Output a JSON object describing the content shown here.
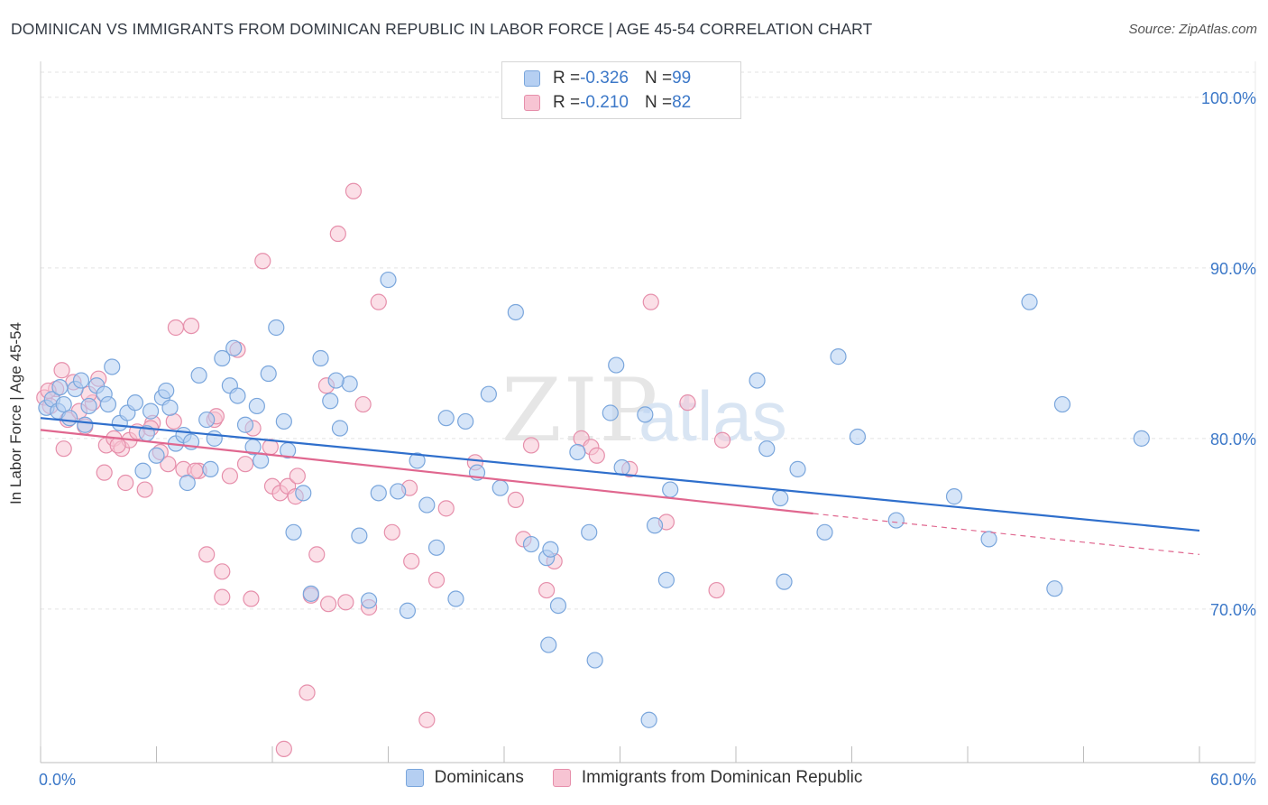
{
  "title": "DOMINICAN VS IMMIGRANTS FROM DOMINICAN REPUBLIC IN LABOR FORCE | AGE 45-54 CORRELATION CHART",
  "source": "Source: ZipAtlas.com",
  "watermark": {
    "zip": "ZIP",
    "atlas": "atlas"
  },
  "legend": {
    "rows": [
      {
        "r_label": "R = ",
        "r_value": "-0.326",
        "n_label": "N = ",
        "n_value": "99"
      },
      {
        "r_label": "R = ",
        "r_value": "-0.210",
        "n_label": "N = ",
        "n_value": "82"
      }
    ]
  },
  "bottom_legend": [
    "Dominicans",
    "Immigrants from Dominican Republic"
  ],
  "colors": {
    "blue_fill": "#b5cff2",
    "blue_stroke": "#7aa6dc",
    "blue_line": "#2f6fcc",
    "pink_fill": "#f7c4d3",
    "pink_stroke": "#e68fab",
    "pink_line": "#e0678f",
    "grid": "#e3e3e3",
    "tick_label": "#3c78c8"
  },
  "chart_data": {
    "type": "scatter",
    "title": "DOMINICAN VS IMMIGRANTS FROM DOMINICAN REPUBLIC IN LABOR FORCE | AGE 45-54 CORRELATION CHART",
    "xlabel": "",
    "ylabel": "In Labor Force | Age 45-54",
    "xlim": [
      0,
      60
    ],
    "ylim": [
      61,
      102
    ],
    "x_tick_labels": [
      "0.0%",
      "60.0%"
    ],
    "y_ticks": [
      70,
      80,
      90,
      100
    ],
    "y_tick_labels": [
      "70.0%",
      "80.0%",
      "90.0%",
      "100.0%"
    ],
    "series": [
      {
        "name": "Dominicans",
        "r": -0.326,
        "n": 99,
        "trend": {
          "x0": 0,
          "y0": 81.2,
          "x1": 60,
          "y1": 74.6
        },
        "points": [
          [
            0.3,
            81.8
          ],
          [
            0.6,
            82.3
          ],
          [
            0.9,
            81.6
          ],
          [
            1.2,
            82.0
          ],
          [
            1.5,
            81.2
          ],
          [
            1.8,
            82.9
          ],
          [
            2.1,
            83.4
          ],
          [
            2.5,
            81.9
          ],
          [
            2.9,
            83.1
          ],
          [
            3.3,
            82.6
          ],
          [
            3.7,
            84.2
          ],
          [
            4.1,
            80.9
          ],
          [
            4.5,
            81.5
          ],
          [
            4.9,
            82.1
          ],
          [
            5.3,
            78.1
          ],
          [
            5.7,
            81.6
          ],
          [
            6.0,
            79.0
          ],
          [
            6.3,
            82.4
          ],
          [
            6.7,
            81.8
          ],
          [
            7.0,
            79.7
          ],
          [
            7.4,
            80.2
          ],
          [
            7.8,
            79.8
          ],
          [
            8.2,
            83.7
          ],
          [
            8.6,
            81.1
          ],
          [
            9.0,
            80.0
          ],
          [
            9.4,
            84.7
          ],
          [
            9.8,
            83.1
          ],
          [
            10.2,
            82.5
          ],
          [
            10.6,
            80.8
          ],
          [
            11.0,
            79.5
          ],
          [
            11.4,
            78.7
          ],
          [
            11.8,
            83.8
          ],
          [
            12.2,
            86.5
          ],
          [
            12.6,
            81.0
          ],
          [
            13.1,
            74.5
          ],
          [
            13.6,
            76.8
          ],
          [
            14.0,
            70.9
          ],
          [
            14.5,
            84.7
          ],
          [
            15.0,
            82.2
          ],
          [
            15.5,
            80.6
          ],
          [
            16.0,
            83.2
          ],
          [
            16.5,
            74.3
          ],
          [
            17.0,
            70.5
          ],
          [
            17.5,
            76.8
          ],
          [
            18.0,
            89.3
          ],
          [
            18.5,
            76.9
          ],
          [
            19.0,
            69.9
          ],
          [
            19.5,
            78.7
          ],
          [
            20.0,
            76.1
          ],
          [
            20.5,
            73.6
          ],
          [
            21.0,
            81.2
          ],
          [
            21.5,
            70.6
          ],
          [
            22.0,
            81.0
          ],
          [
            22.6,
            78.0
          ],
          [
            23.2,
            82.6
          ],
          [
            23.8,
            77.1
          ],
          [
            24.6,
            87.4
          ],
          [
            25.4,
            73.8
          ],
          [
            26.2,
            73.0
          ],
          [
            26.4,
            73.5
          ],
          [
            26.3,
            67.9
          ],
          [
            26.8,
            70.2
          ],
          [
            27.8,
            79.2
          ],
          [
            28.4,
            74.5
          ],
          [
            28.7,
            67.0
          ],
          [
            29.5,
            81.5
          ],
          [
            29.8,
            84.3
          ],
          [
            30.1,
            78.3
          ],
          [
            31.3,
            81.4
          ],
          [
            31.5,
            63.5
          ],
          [
            31.8,
            74.9
          ],
          [
            32.4,
            71.7
          ],
          [
            32.6,
            77.0
          ],
          [
            37.1,
            83.4
          ],
          [
            37.6,
            79.4
          ],
          [
            38.3,
            76.5
          ],
          [
            38.5,
            71.6
          ],
          [
            39.2,
            78.2
          ],
          [
            40.6,
            74.5
          ],
          [
            41.3,
            84.8
          ],
          [
            42.3,
            80.1
          ],
          [
            44.3,
            75.2
          ],
          [
            47.3,
            76.6
          ],
          [
            49.1,
            74.1
          ],
          [
            51.2,
            88.0
          ],
          [
            52.5,
            71.2
          ],
          [
            52.9,
            82.0
          ],
          [
            57.0,
            80.0
          ],
          [
            1.0,
            83.0
          ],
          [
            3.5,
            82.0
          ],
          [
            6.5,
            82.8
          ],
          [
            8.8,
            78.2
          ],
          [
            10.0,
            85.3
          ],
          [
            11.2,
            81.9
          ],
          [
            12.8,
            79.3
          ],
          [
            15.3,
            83.4
          ],
          [
            5.5,
            80.3
          ],
          [
            2.3,
            80.8
          ],
          [
            7.6,
            77.4
          ]
        ]
      },
      {
        "name": "Immigrants from Dominican Republic",
        "r": -0.21,
        "n": 82,
        "trend": {
          "x0": 0,
          "y0": 80.5,
          "x1": 40,
          "y1": 75.6
        },
        "trend_dashed": {
          "x0": 40,
          "y0": 75.6,
          "x1": 60,
          "y1": 73.2
        },
        "points": [
          [
            0.2,
            82.4
          ],
          [
            0.5,
            81.9
          ],
          [
            0.8,
            82.9
          ],
          [
            1.1,
            84.0
          ],
          [
            1.4,
            81.1
          ],
          [
            1.7,
            83.3
          ],
          [
            2.0,
            81.6
          ],
          [
            2.3,
            80.7
          ],
          [
            2.7,
            82.1
          ],
          [
            3.0,
            83.5
          ],
          [
            3.4,
            79.6
          ],
          [
            3.8,
            80.0
          ],
          [
            4.2,
            79.4
          ],
          [
            4.6,
            79.9
          ],
          [
            5.0,
            80.4
          ],
          [
            5.4,
            77.0
          ],
          [
            5.8,
            80.9
          ],
          [
            6.2,
            79.2
          ],
          [
            6.6,
            78.5
          ],
          [
            7.0,
            86.5
          ],
          [
            7.4,
            78.2
          ],
          [
            7.8,
            86.6
          ],
          [
            8.2,
            78.1
          ],
          [
            8.6,
            73.2
          ],
          [
            9.0,
            81.1
          ],
          [
            9.4,
            72.2
          ],
          [
            9.8,
            77.8
          ],
          [
            10.2,
            85.2
          ],
          [
            10.6,
            78.5
          ],
          [
            11.0,
            80.6
          ],
          [
            11.5,
            90.4
          ],
          [
            12.0,
            77.2
          ],
          [
            12.4,
            76.8
          ],
          [
            12.8,
            77.2
          ],
          [
            13.3,
            77.8
          ],
          [
            13.8,
            65.1
          ],
          [
            14.3,
            73.2
          ],
          [
            14.8,
            83.1
          ],
          [
            15.4,
            92.0
          ],
          [
            16.2,
            94.5
          ],
          [
            16.7,
            82.0
          ],
          [
            17.5,
            88.0
          ],
          [
            18.2,
            74.5
          ],
          [
            19.1,
            77.1
          ],
          [
            20.0,
            63.5
          ],
          [
            20.5,
            71.7
          ],
          [
            21.0,
            75.9
          ],
          [
            22.5,
            78.6
          ],
          [
            24.6,
            76.4
          ],
          [
            25.0,
            74.1
          ],
          [
            25.4,
            79.6
          ],
          [
            26.2,
            71.1
          ],
          [
            28.0,
            80.0
          ],
          [
            28.5,
            79.5
          ],
          [
            28.8,
            79.0
          ],
          [
            30.5,
            78.2
          ],
          [
            31.6,
            88.0
          ],
          [
            32.4,
            75.1
          ],
          [
            33.5,
            82.1
          ],
          [
            35.0,
            71.1
          ],
          [
            35.3,
            79.9
          ],
          [
            0.4,
            82.8
          ],
          [
            1.2,
            79.4
          ],
          [
            2.5,
            82.6
          ],
          [
            3.3,
            78.0
          ],
          [
            4.0,
            79.6
          ],
          [
            4.4,
            77.4
          ],
          [
            5.7,
            80.6
          ],
          [
            6.9,
            81.0
          ],
          [
            8.0,
            78.1
          ],
          [
            9.1,
            81.3
          ],
          [
            10.9,
            70.6
          ],
          [
            11.9,
            79.5
          ],
          [
            13.2,
            76.6
          ],
          [
            14.0,
            70.8
          ],
          [
            14.9,
            70.3
          ],
          [
            15.8,
            70.4
          ],
          [
            17.0,
            70.1
          ],
          [
            19.2,
            72.8
          ],
          [
            26.6,
            72.8
          ],
          [
            12.6,
            61.8
          ],
          [
            9.4,
            70.7
          ]
        ]
      }
    ]
  }
}
